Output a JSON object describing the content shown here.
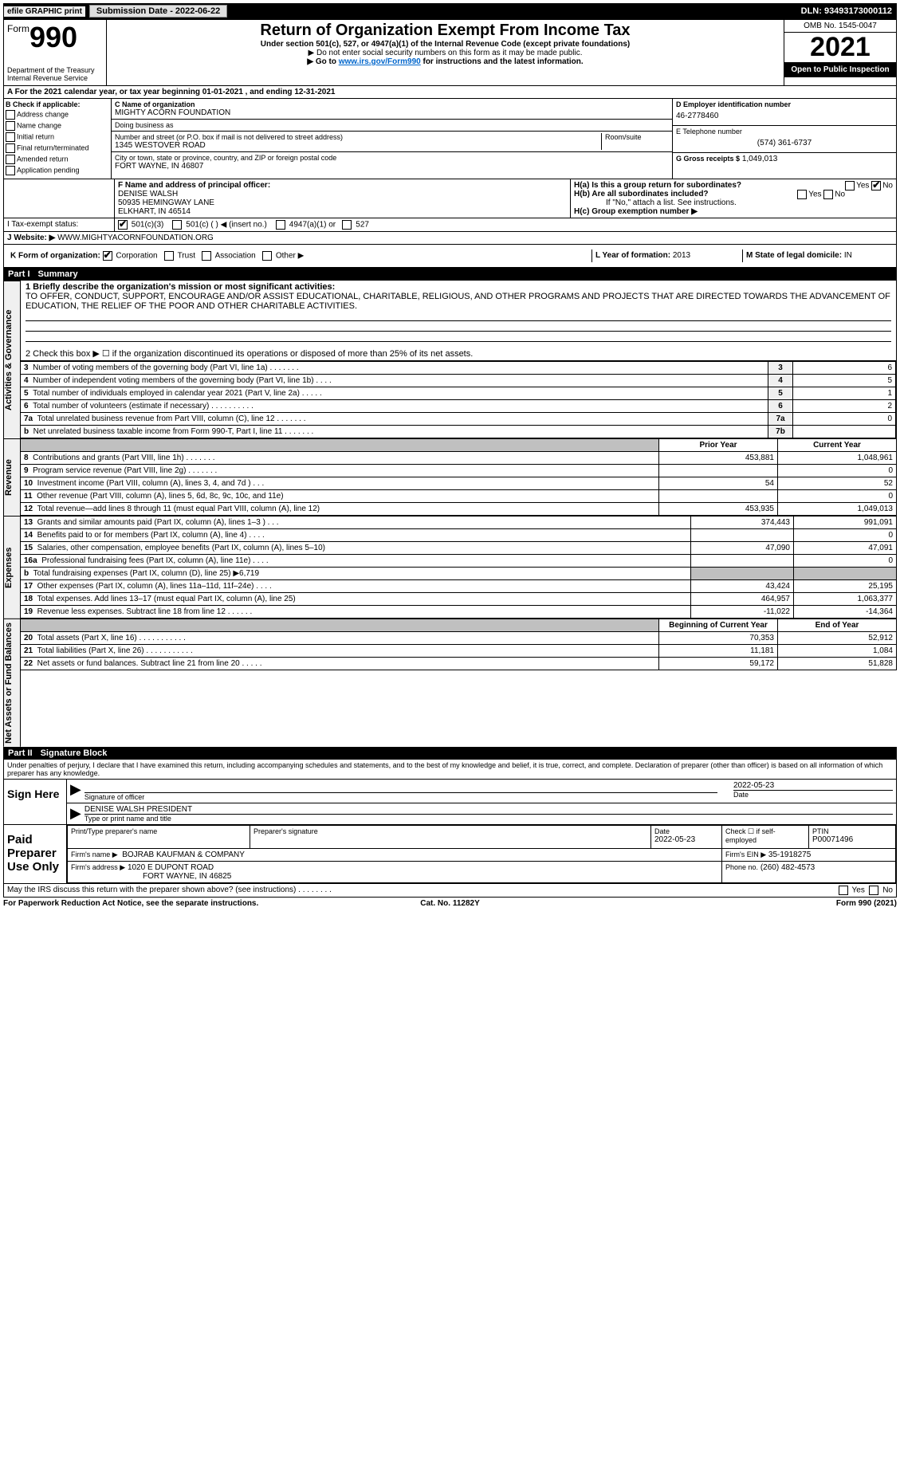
{
  "top": {
    "efile": "efile GRAPHIC print",
    "submission_label": "Submission Date - 2022-06-22",
    "dln": "DLN: 93493173000112"
  },
  "header": {
    "form_prefix": "Form",
    "form_num": "990",
    "title": "Return of Organization Exempt From Income Tax",
    "sub1": "Under section 501(c), 527, or 4947(a)(1) of the Internal Revenue Code (except private foundations)",
    "sub2": "▶ Do not enter social security numbers on this form as it may be made public.",
    "sub3_pre": "▶ Go to ",
    "sub3_link": "www.irs.gov/Form990",
    "sub3_post": " for instructions and the latest information.",
    "dept": "Department of the Treasury\nInternal Revenue Service",
    "omb": "OMB No. 1545-0047",
    "year": "2021",
    "open": "Open to Public Inspection"
  },
  "A": {
    "text": "A For the 2021 calendar year, or tax year beginning 01-01-2021    , and ending 12-31-2021"
  },
  "B": {
    "title": "B Check if applicable:",
    "opts": [
      "Address change",
      "Name change",
      "Initial return",
      "Final return/terminated",
      "Amended return",
      "Application pending"
    ]
  },
  "C": {
    "name_label": "C Name of organization",
    "name": "MIGHTY ACORN FOUNDATION",
    "dba_label": "Doing business as",
    "dba": "",
    "street_label": "Number and street (or P.O. box if mail is not delivered to street address)",
    "room_label": "Room/suite",
    "street": "1345 WESTOVER ROAD",
    "city_label": "City or town, state or province, country, and ZIP or foreign postal code",
    "city": "FORT WAYNE, IN  46807"
  },
  "D": {
    "label": "D Employer identification number",
    "value": "46-2778460"
  },
  "E": {
    "label": "E Telephone number",
    "value": "(574) 361-6737"
  },
  "G": {
    "label": "G Gross receipts $",
    "value": "1,049,013"
  },
  "F": {
    "label": "F Name and address of principal officer:",
    "name": "DENISE WALSH",
    "addr1": "50935 HEMINGWAY LANE",
    "addr2": "ELKHART, IN  46514"
  },
  "H": {
    "a_label": "H(a)  Is this a group return for subordinates?",
    "a_yes": "Yes",
    "a_no": "No",
    "b_label": "H(b)  Are all subordinates included?",
    "b_note": "If \"No,\" attach a list. See instructions.",
    "c_label": "H(c)  Group exemption number ▶"
  },
  "I": {
    "label": "I   Tax-exempt status:",
    "o1": "501(c)(3)",
    "o2": "501(c) (   ) ◀ (insert no.)",
    "o3": "4947(a)(1) or",
    "o4": "527"
  },
  "J": {
    "label": "J   Website: ▶",
    "value": "WWW.MIGHTYACORNFOUNDATION.ORG"
  },
  "K": {
    "label": "K Form of organization:",
    "o1": "Corporation",
    "o2": "Trust",
    "o3": "Association",
    "o4": "Other ▶"
  },
  "L": {
    "label": "L Year of formation:",
    "value": "2013"
  },
  "M": {
    "label": "M State of legal domicile:",
    "value": "IN"
  },
  "part1": {
    "num": "Part I",
    "title": "Summary",
    "l1_label": "1  Briefly describe the organization's mission or most significant activities:",
    "l1_text": "TO OFFER, CONDUCT, SUPPORT, ENCOURAGE AND/OR ASSIST EDUCATIONAL, CHARITABLE, RELIGIOUS, AND OTHER PROGRAMS AND PROJECTS THAT ARE DIRECTED TOWARDS THE ADVANCEMENT OF EDUCATION, THE RELIEF OF THE POOR AND OTHER CHARITABLE ACTIVITIES.",
    "l2": "2   Check this box ▶ ☐ if the organization discontinued its operations or disposed of more than 25% of its net assets.",
    "tab_gov": "Activities & Governance",
    "tab_rev": "Revenue",
    "tab_exp": "Expenses",
    "tab_net": "Net Assets or Fund Balances",
    "rows_gov": [
      {
        "n": "3",
        "t": "Number of voting members of the governing body (Part VI, line 1a)   .    .    .    .    .    .    .",
        "box": "3",
        "v": "6"
      },
      {
        "n": "4",
        "t": "Number of independent voting members of the governing body (Part VI, line 1b)    .    .    .    .",
        "box": "4",
        "v": "5"
      },
      {
        "n": "5",
        "t": "Total number of individuals employed in calendar year 2021 (Part V, line 2a)   .    .    .    .    .",
        "box": "5",
        "v": "1"
      },
      {
        "n": "6",
        "t": "Total number of volunteers (estimate if necessary)    .    .    .    .    .    .    .    .    .    .",
        "box": "6",
        "v": "2"
      },
      {
        "n": "7a",
        "t": "Total unrelated business revenue from Part VIII, column (C), line 12   .    .    .    .    .    .    .",
        "box": "7a",
        "v": "0"
      },
      {
        "n": "b",
        "t": "Net unrelated business taxable income from Form 990-T, Part I, line 11   .    .    .    .    .    .    .",
        "box": "7b",
        "v": ""
      }
    ],
    "hdr_prior": "Prior Year",
    "hdr_curr": "Current Year",
    "rows_rev": [
      {
        "n": "8",
        "t": "Contributions and grants (Part VIII, line 1h)   .    .    .    .    .    .    .",
        "p": "453,881",
        "c": "1,048,961"
      },
      {
        "n": "9",
        "t": "Program service revenue (Part VIII, line 2g)   .    .    .    .    .    .    .",
        "p": "",
        "c": "0"
      },
      {
        "n": "10",
        "t": "Investment income (Part VIII, column (A), lines 3, 4, and 7d )   .    .    .",
        "p": "54",
        "c": "52"
      },
      {
        "n": "11",
        "t": "Other revenue (Part VIII, column (A), lines 5, 6d, 8c, 9c, 10c, and 11e)",
        "p": "",
        "c": "0"
      },
      {
        "n": "12",
        "t": "Total revenue—add lines 8 through 11 (must equal Part VIII, column (A), line 12)",
        "p": "453,935",
        "c": "1,049,013"
      }
    ],
    "rows_exp": [
      {
        "n": "13",
        "t": "Grants and similar amounts paid (Part IX, column (A), lines 1–3 )   .    .    .",
        "p": "374,443",
        "c": "991,091"
      },
      {
        "n": "14",
        "t": "Benefits paid to or for members (Part IX, column (A), line 4)   .    .    .    .",
        "p": "",
        "c": "0"
      },
      {
        "n": "15",
        "t": "Salaries, other compensation, employee benefits (Part IX, column (A), lines 5–10)",
        "p": "47,090",
        "c": "47,091"
      },
      {
        "n": "16a",
        "t": "Professional fundraising fees (Part IX, column (A), line 11e)   .    .    .    .",
        "p": "",
        "c": "0"
      },
      {
        "n": "b",
        "t": "Total fundraising expenses (Part IX, column (D), line 25) ▶6,719",
        "p": "SHADE",
        "c": "SHADE"
      },
      {
        "n": "17",
        "t": "Other expenses (Part IX, column (A), lines 11a–11d, 11f–24e)   .    .    .    .",
        "p": "43,424",
        "c": "25,195"
      },
      {
        "n": "18",
        "t": "Total expenses. Add lines 13–17 (must equal Part IX, column (A), line 25)",
        "p": "464,957",
        "c": "1,063,377"
      },
      {
        "n": "19",
        "t": "Revenue less expenses. Subtract line 18 from line 12   .    .    .    .    .    .",
        "p": "-11,022",
        "c": "-14,364"
      }
    ],
    "hdr_beg": "Beginning of Current Year",
    "hdr_end": "End of Year",
    "rows_net": [
      {
        "n": "20",
        "t": "Total assets (Part X, line 16)   .    .    .    .    .    .    .    .    .    .    .",
        "p": "70,353",
        "c": "52,912"
      },
      {
        "n": "21",
        "t": "Total liabilities (Part X, line 26)   .    .    .    .    .    .    .    .    .    .    .",
        "p": "11,181",
        "c": "1,084"
      },
      {
        "n": "22",
        "t": "Net assets or fund balances. Subtract line 21 from line 20   .    .    .    .    .",
        "p": "59,172",
        "c": "51,828"
      }
    ]
  },
  "part2": {
    "num": "Part II",
    "title": "Signature Block",
    "decl": "Under penalties of perjury, I declare that I have examined this return, including accompanying schedules and statements, and to the best of my knowledge and belief, it is true, correct, and complete. Declaration of preparer (other than officer) is based on all information of which preparer has any knowledge."
  },
  "sign": {
    "here": "Sign Here",
    "sig_label": "Signature of officer",
    "date_label": "Date",
    "date": "2022-05-23",
    "name": "DENISE WALSH  PRESIDENT",
    "name_label": "Type or print name and title"
  },
  "paid": {
    "title": "Paid Preparer Use Only",
    "p_name_label": "Print/Type preparer's name",
    "p_sig_label": "Preparer's signature",
    "p_date_label": "Date",
    "p_date": "2022-05-23",
    "self_label": "Check ☐ if self-employed",
    "ptin_label": "PTIN",
    "ptin": "P00071496",
    "firm_name_label": "Firm's name    ▶",
    "firm_name": "BOJRAB KAUFMAN & COMPANY",
    "firm_ein_label": "Firm's EIN ▶",
    "firm_ein": "35-1918275",
    "firm_addr_label": "Firm's address ▶",
    "firm_addr1": "1020 E DUPONT ROAD",
    "firm_addr2": "FORT WAYNE, IN  46825",
    "phone_label": "Phone no.",
    "phone": "(260) 482-4573"
  },
  "may": {
    "text": "May the IRS discuss this return with the preparer shown above? (see instructions)   .    .    .    .    .    .    .    .",
    "yes": "Yes",
    "no": "No"
  },
  "footer": {
    "left": "For Paperwork Reduction Act Notice, see the separate instructions.",
    "mid": "Cat. No. 11282Y",
    "right": "Form 990 (2021)"
  }
}
